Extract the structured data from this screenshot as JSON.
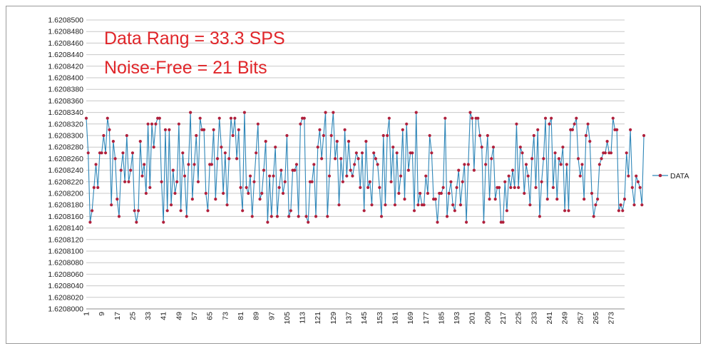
{
  "chart_data": {
    "type": "line",
    "title": "",
    "xlabel": "",
    "ylabel": "",
    "annotations": [
      "Data Rang = 33.3 SPS",
      "Noise-Free =  21 Bits"
    ],
    "ylim": [
      1.6208,
      1.62085
    ],
    "y_ticks": [
      "1.6208000",
      "1.6208020",
      "1.6208040",
      "1.6208060",
      "1.6208080",
      "1.6208100",
      "1.6208120",
      "1.6208140",
      "1.6208160",
      "1.6208180",
      "1.6208200",
      "1.6208220",
      "1.6208240",
      "1.6208260",
      "1.6208280",
      "1.6208300",
      "1.6208320",
      "1.6208340",
      "1.6208360",
      "1.6208380",
      "1.6208400",
      "1.6208420",
      "1.6208440",
      "1.6208460",
      "1.6208480",
      "1.6208500"
    ],
    "x_ticks": [
      "1",
      "9",
      "17",
      "25",
      "33",
      "41",
      "49",
      "57",
      "65",
      "73",
      "81",
      "89",
      "97",
      "105",
      "113",
      "121",
      "129",
      "137",
      "145",
      "153",
      "161",
      "169",
      "177",
      "185",
      "193",
      "201",
      "209",
      "217",
      "225",
      "233",
      "241",
      "249",
      "257",
      "265",
      "273"
    ],
    "xlim": [
      1,
      280
    ],
    "grid": true,
    "legend_position": "right",
    "series": [
      {
        "name": "DATA",
        "line_color": "#2e86b8",
        "marker_color": "#b0203c",
        "x_start": 1,
        "values": [
          1.620833,
          1.620827,
          1.620815,
          1.620817,
          1.620821,
          1.620825,
          1.620821,
          1.620827,
          1.620827,
          1.62083,
          1.620827,
          1.620833,
          1.620831,
          1.620818,
          1.620829,
          1.620826,
          1.620819,
          1.620816,
          1.620824,
          1.620827,
          1.620822,
          1.62083,
          1.620822,
          1.620824,
          1.620827,
          1.620817,
          1.620815,
          1.620817,
          1.620829,
          1.620823,
          1.620825,
          1.62082,
          1.620832,
          1.620821,
          1.620832,
          1.620828,
          1.620832,
          1.620833,
          1.620833,
          1.620822,
          1.620815,
          1.620831,
          1.620817,
          1.620831,
          1.620818,
          1.620824,
          1.62082,
          1.620822,
          1.620832,
          1.620817,
          1.620827,
          1.620823,
          1.620816,
          1.620825,
          1.620834,
          1.620819,
          1.620825,
          1.62083,
          1.620822,
          1.620833,
          1.620831,
          1.620831,
          1.62082,
          1.620817,
          1.620825,
          1.620825,
          1.620831,
          1.620819,
          1.620826,
          1.620833,
          1.620828,
          1.62082,
          1.620827,
          1.620818,
          1.620826,
          1.620833,
          1.62083,
          1.620833,
          1.620826,
          1.620831,
          1.620821,
          1.620817,
          1.620834,
          1.620821,
          1.62082,
          1.620823,
          1.620816,
          1.620822,
          1.620827,
          1.620832,
          1.620819,
          1.62082,
          1.620824,
          1.620829,
          1.620815,
          1.620823,
          1.620816,
          1.620823,
          1.620828,
          1.620816,
          1.620821,
          1.620824,
          1.62082,
          1.620822,
          1.62083,
          1.620816,
          1.620817,
          1.620824,
          1.620824,
          1.620825,
          1.620816,
          1.620832,
          1.620833,
          1.620833,
          1.620816,
          1.620815,
          1.620822,
          1.620822,
          1.620825,
          1.620816,
          1.620828,
          1.620831,
          1.620826,
          1.62083,
          1.620834,
          1.620816,
          1.620823,
          1.62083,
          1.620834,
          1.620826,
          1.620829,
          1.620818,
          1.620826,
          1.620822,
          1.620831,
          1.620823,
          1.620829,
          1.620824,
          1.620823,
          1.620825,
          1.620827,
          1.620826,
          1.620821,
          1.620827,
          1.620817,
          1.620829,
          1.620821,
          1.620822,
          1.620818,
          1.620827,
          1.620826,
          1.620825,
          1.620821,
          1.620816,
          1.62083,
          1.620818,
          1.62083,
          1.620833,
          1.620822,
          1.620828,
          1.620818,
          1.620827,
          1.62082,
          1.620823,
          1.620831,
          1.620819,
          1.620832,
          1.620824,
          1.620827,
          1.620827,
          1.620817,
          1.620834,
          1.620818,
          1.62082,
          1.620818,
          1.620818,
          1.620823,
          1.62082,
          1.62083,
          1.620827,
          1.620819,
          1.620819,
          1.620815,
          1.62082,
          1.62082,
          1.620821,
          1.620833,
          1.620816,
          1.62082,
          1.620822,
          1.620818,
          1.620817,
          1.620821,
          1.620824,
          1.620818,
          1.620822,
          1.620825,
          1.620815,
          1.620825,
          1.620834,
          1.620833,
          1.620824,
          1.620833,
          1.620833,
          1.62083,
          1.620828,
          1.620815,
          1.620825,
          1.62083,
          1.620819,
          1.620826,
          1.620828,
          1.620819,
          1.620821,
          1.620821,
          1.620815,
          1.620815,
          1.620822,
          1.620817,
          1.620823,
          1.620821,
          1.620824,
          1.620821,
          1.620832,
          1.620821,
          1.620828,
          1.620827,
          1.62082,
          1.620825,
          1.620823,
          1.620818,
          1.620826,
          1.62083,
          1.620821,
          1.620831,
          1.620816,
          1.620822,
          1.620826,
          1.620833,
          1.620819,
          1.620832,
          1.620833,
          1.620821,
          1.620827,
          1.620819,
          1.620826,
          1.620825,
          1.620828,
          1.620817,
          1.620825,
          1.620817,
          1.620831,
          1.620831,
          1.620832,
          1.620833,
          1.620826,
          1.620823,
          1.620825,
          1.620819,
          1.62083,
          1.620832,
          1.620829,
          1.62082,
          1.620816,
          1.620818,
          1.620819,
          1.620825,
          1.620826,
          1.620827,
          1.620827,
          1.620829,
          1.620827,
          1.620827,
          1.620833,
          1.620831,
          1.620831,
          1.620817,
          1.620818,
          1.620817,
          1.620819,
          1.620827,
          1.620823,
          1.620831,
          1.620821,
          1.620818,
          1.620823,
          1.620822,
          1.620821,
          1.620818,
          1.62083
        ]
      }
    ]
  }
}
